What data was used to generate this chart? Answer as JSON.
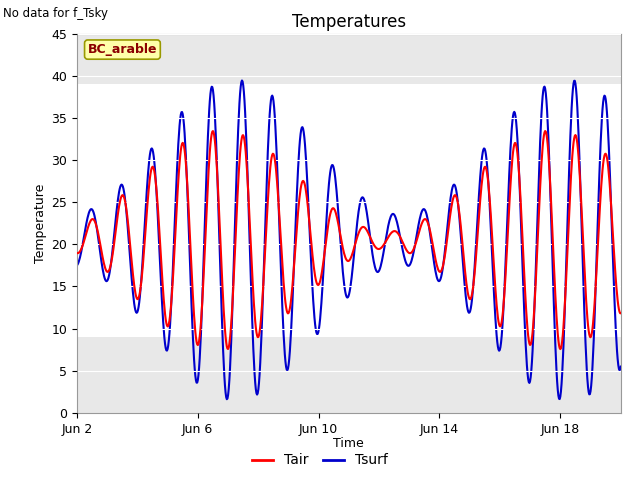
{
  "title": "Temperatures",
  "xlabel": "Time",
  "ylabel": "Temperature",
  "no_data_text": "No data for f_Tsky",
  "bc_label": "BC_arable",
  "ylim": [
    0,
    45
  ],
  "yticks": [
    0,
    5,
    10,
    15,
    20,
    25,
    30,
    35,
    40,
    45
  ],
  "xtick_labels": [
    "Jun 2",
    "Jun 6",
    "Jun 10",
    "Jun 14",
    "Jun 18"
  ],
  "xtick_positions": [
    0,
    4,
    8,
    12,
    16
  ],
  "xlim": [
    0,
    18
  ],
  "legend_labels": [
    "Tair",
    "Tsurf"
  ],
  "tair_color": "#ff0000",
  "tsurf_color": "#0000cc",
  "plot_bg_color": "#e8e8e8",
  "white_band_ymin": 9,
  "white_band_ymax": 39,
  "n_days": 18,
  "points_per_day": 48,
  "figwidth": 6.4,
  "figheight": 4.8,
  "title_fontsize": 12,
  "axis_label_fontsize": 9,
  "tick_fontsize": 9
}
